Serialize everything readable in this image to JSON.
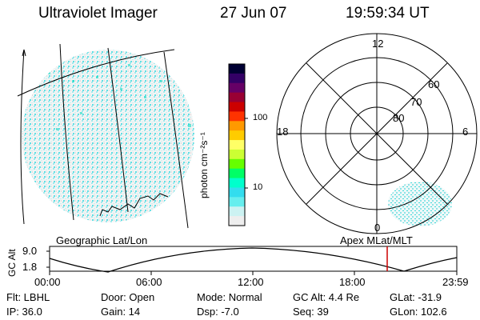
{
  "header": {
    "instrument": "Ultraviolet Imager",
    "date": "27 Jun 07",
    "time": "19:59:34 UT"
  },
  "colorbar": {
    "unit_label": "photon cm⁻²s⁻¹",
    "tick_100": "100",
    "tick_10": "10",
    "colors": [
      "#000033",
      "#330066",
      "#660066",
      "#990033",
      "#cc0000",
      "#ff3300",
      "#ff9900",
      "#ffcc00",
      "#ffff66",
      "#ccff33",
      "#66ff00",
      "#00ff66",
      "#00ffcc",
      "#33ddee",
      "#66eeee",
      "#ccf2f2",
      "#eeeeee"
    ]
  },
  "polar_plot": {
    "labels": {
      "top": "12",
      "left": "18",
      "right": "6",
      "bottom": "0",
      "lat60": "60",
      "lat70": "70",
      "lat80": "80"
    }
  },
  "panel_labels": {
    "left": "Geographic Lat/Lon",
    "right": "Apex  MLat/MLT"
  },
  "altitude_plot": {
    "ylabel": "GC Alt",
    "ymax": "9.0",
    "ymin": "1.8",
    "xticks": [
      "00:00",
      "06:00",
      "12:00",
      "18:00",
      "23:59"
    ],
    "current_time_color": "#cc0000"
  },
  "info": {
    "flt": "Flt: LBHL",
    "ip": "IP: 36.0",
    "door": "Door: Open",
    "gain": "Gain: 14",
    "mode": "Mode: Normal",
    "dsp": "Dsp:    -7.0",
    "gcalt": "GC Alt: 4.4 Re",
    "seq": "Seq: 39",
    "glat": "GLat: -31.9",
    "glon": "GLon: 102.6"
  }
}
